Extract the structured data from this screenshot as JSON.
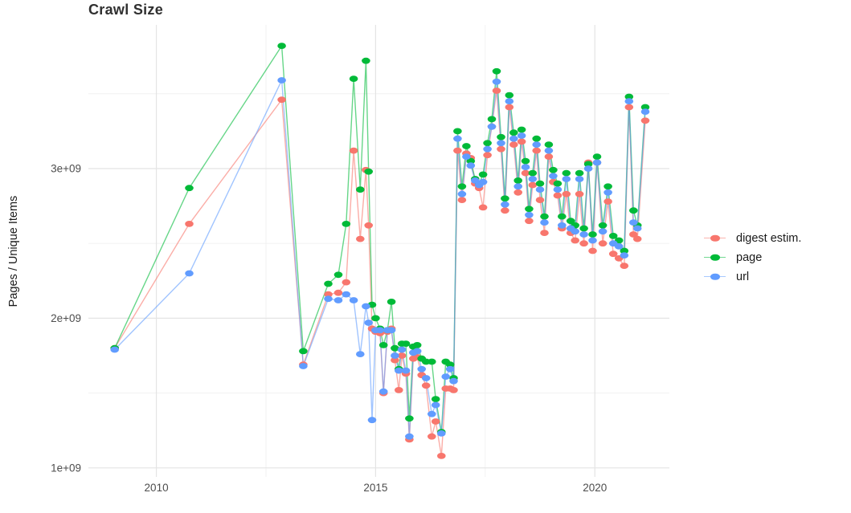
{
  "title": "Crawl Size",
  "chart_data": {
    "type": "line",
    "title": "Crawl Size",
    "xlabel": "",
    "ylabel": "Pages / Unique Items",
    "grid": true,
    "legend_position": "right",
    "background": "#ffffff",
    "grid_major_color": "#e4e4e4",
    "grid_minor_color": "#f0f0f0",
    "tick_label_color": "#4d4d4d",
    "xlim": [
      2008.45,
      2021.7
    ],
    "ylim_billions": [
      0.94,
      3.96
    ],
    "x_ticks": {
      "values": [
        2010,
        2015,
        2020
      ],
      "labels": [
        "2010",
        "2015",
        "2020"
      ]
    },
    "x_minor_ticks": [
      2012.5,
      2017.5
    ],
    "y_ticks": {
      "values": [
        1,
        2,
        3
      ],
      "labels": [
        "1e+09",
        "2e+09",
        "3e+09"
      ]
    },
    "y_minor_ticks": [
      1.5,
      2.5,
      3.5
    ],
    "x_years": [
      2009.05,
      2010.75,
      2012.86,
      2013.35,
      2013.92,
      2014.15,
      2014.33,
      2014.5,
      2014.65,
      2014.78,
      2014.84,
      2014.92,
      2015.0,
      2015.1,
      2015.18,
      2015.27,
      2015.36,
      2015.44,
      2015.53,
      2015.6,
      2015.69,
      2015.77,
      2015.86,
      2015.95,
      2016.05,
      2016.15,
      2016.28,
      2016.37,
      2016.5,
      2016.6,
      2016.7,
      2016.78,
      2016.87,
      2016.97,
      2017.07,
      2017.17,
      2017.27,
      2017.36,
      2017.45,
      2017.55,
      2017.65,
      2017.76,
      2017.86,
      2017.95,
      2018.05,
      2018.15,
      2018.25,
      2018.33,
      2018.42,
      2018.5,
      2018.58,
      2018.67,
      2018.75,
      2018.85,
      2018.95,
      2019.05,
      2019.15,
      2019.25,
      2019.35,
      2019.45,
      2019.55,
      2019.65,
      2019.75,
      2019.85,
      2019.95,
      2020.05,
      2020.18,
      2020.3,
      2020.42,
      2020.55,
      2020.67,
      2020.78,
      2020.88,
      2020.97,
      2021.15
    ],
    "series": [
      {
        "name": "digest estim.",
        "color": "#F8766D",
        "values_billions": [
          1.8,
          2.63,
          3.46,
          1.69,
          2.16,
          2.17,
          2.24,
          3.12,
          2.53,
          2.99,
          2.62,
          1.93,
          1.91,
          1.9,
          1.5,
          1.91,
          1.93,
          1.72,
          1.52,
          1.75,
          1.63,
          1.19,
          1.73,
          1.74,
          1.62,
          1.55,
          1.21,
          1.31,
          1.08,
          1.53,
          1.53,
          1.52,
          3.12,
          2.79,
          3.1,
          3.07,
          2.9,
          2.87,
          2.74,
          3.09,
          3.28,
          3.52,
          3.13,
          2.72,
          3.41,
          3.16,
          2.84,
          3.18,
          2.97,
          2.65,
          2.89,
          3.12,
          2.79,
          2.57,
          3.08,
          2.91,
          2.82,
          2.6,
          2.83,
          2.57,
          2.52,
          2.83,
          2.5,
          3.04,
          2.45,
          3.04,
          2.5,
          2.78,
          2.43,
          2.4,
          2.35,
          3.41,
          2.56,
          2.53,
          3.32
        ]
      },
      {
        "name": "page",
        "color": "#00BA38",
        "values_billions": [
          1.8,
          2.87,
          3.82,
          1.78,
          2.23,
          2.29,
          2.63,
          3.6,
          2.86,
          3.72,
          2.98,
          2.09,
          2.0,
          1.93,
          1.82,
          1.92,
          2.11,
          1.8,
          1.66,
          1.83,
          1.83,
          1.33,
          1.81,
          1.82,
          1.73,
          1.71,
          1.71,
          1.46,
          1.24,
          1.71,
          1.69,
          1.6,
          3.25,
          2.88,
          3.15,
          3.05,
          2.93,
          2.9,
          2.96,
          3.17,
          3.33,
          3.65,
          3.21,
          2.8,
          3.49,
          3.24,
          2.92,
          3.26,
          3.05,
          2.73,
          2.97,
          3.2,
          2.9,
          2.68,
          3.16,
          2.99,
          2.9,
          2.68,
          2.97,
          2.65,
          2.62,
          2.97,
          2.6,
          3.03,
          2.56,
          3.08,
          2.62,
          2.88,
          2.55,
          2.52,
          2.45,
          3.48,
          2.72,
          2.62,
          3.41
        ]
      },
      {
        "name": "url",
        "color": "#619CFF",
        "values_billions": [
          1.79,
          2.3,
          3.59,
          1.68,
          2.13,
          2.12,
          2.16,
          2.12,
          1.76,
          2.08,
          1.97,
          1.32,
          1.92,
          1.92,
          1.51,
          1.92,
          1.92,
          1.75,
          1.65,
          1.79,
          1.65,
          1.21,
          1.77,
          1.78,
          1.66,
          1.6,
          1.36,
          1.42,
          1.23,
          1.61,
          1.66,
          1.58,
          3.2,
          2.83,
          3.08,
          3.02,
          2.92,
          2.89,
          2.91,
          3.13,
          3.28,
          3.58,
          3.17,
          2.76,
          3.45,
          3.2,
          2.88,
          3.22,
          3.01,
          2.69,
          2.93,
          3.16,
          2.86,
          2.64,
          3.12,
          2.95,
          2.86,
          2.62,
          2.93,
          2.6,
          2.58,
          2.93,
          2.56,
          3.0,
          2.52,
          3.04,
          2.58,
          2.84,
          2.5,
          2.48,
          2.42,
          3.45,
          2.64,
          2.6,
          3.38
        ]
      }
    ]
  }
}
